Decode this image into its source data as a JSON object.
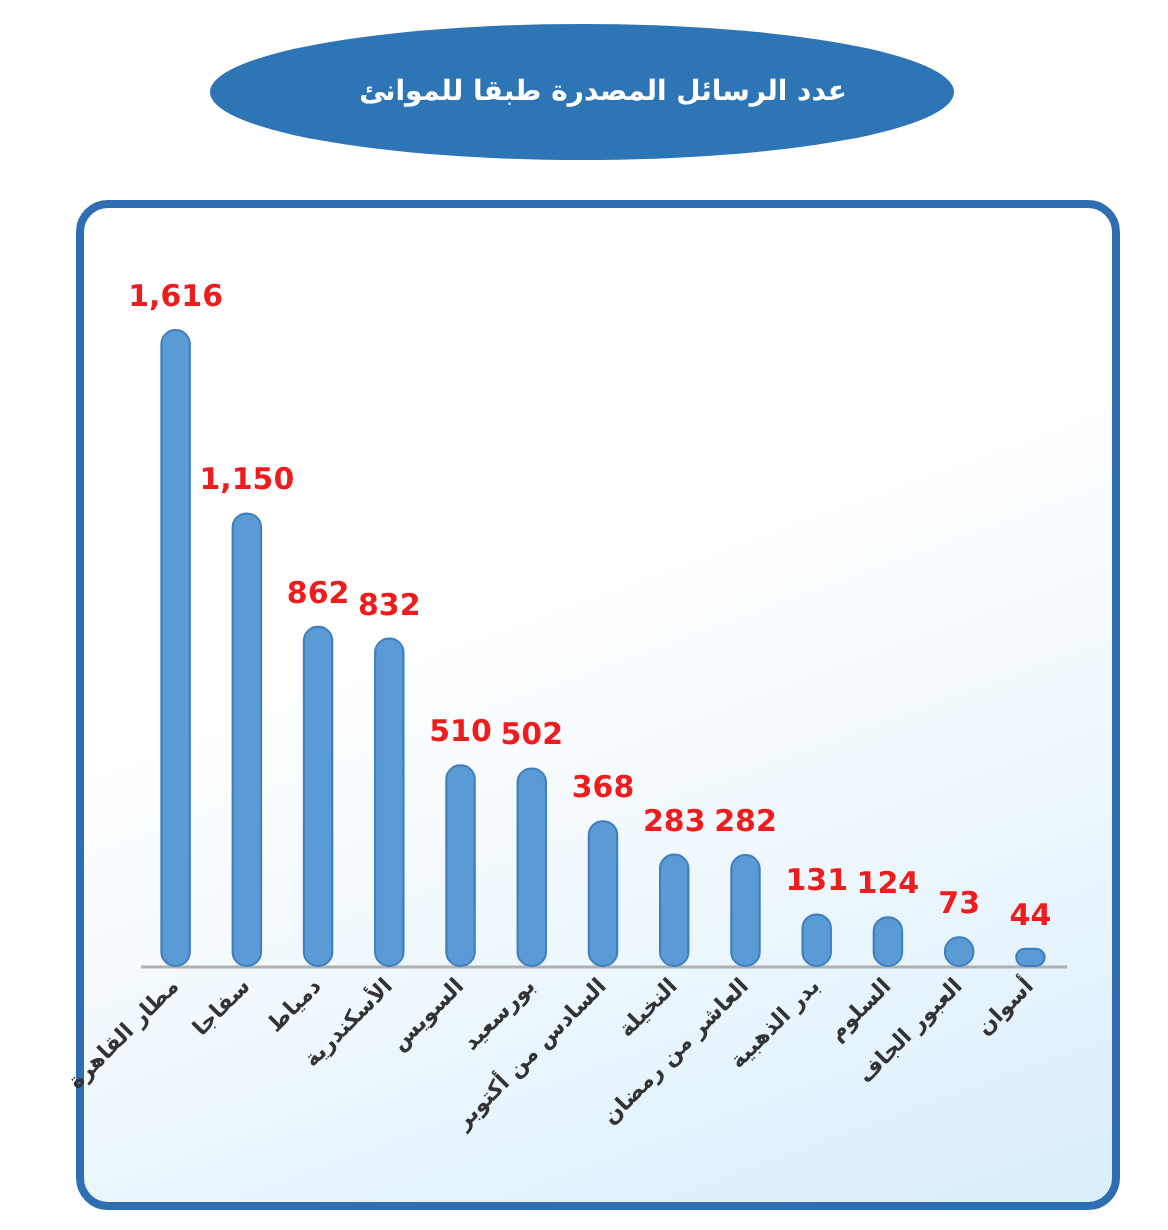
{
  "chart_data": {
    "type": "bar",
    "title": "عدد الرسائل المصدرة طبقا للموانئ",
    "categories": [
      "مطار القاهرة",
      "سفاجا",
      "دمياط",
      "الأسكندرية",
      "السويس",
      "بورسعيد",
      "السادس من أكتوبر",
      "النخيلة",
      "العاشر من رمضان",
      "بدر الذهبية",
      "السلوم",
      "العبور الجاف",
      "أسوان"
    ],
    "values": [
      1616,
      1150,
      862,
      832,
      510,
      502,
      368,
      283,
      282,
      131,
      124,
      73,
      44
    ],
    "value_labels": [
      "1,616",
      "1,150",
      "862",
      "832",
      "510",
      "502",
      "368",
      "283",
      "282",
      "131",
      "124",
      "73",
      "44"
    ],
    "color": "#5b9bd5",
    "tick_labels": "x"
  }
}
